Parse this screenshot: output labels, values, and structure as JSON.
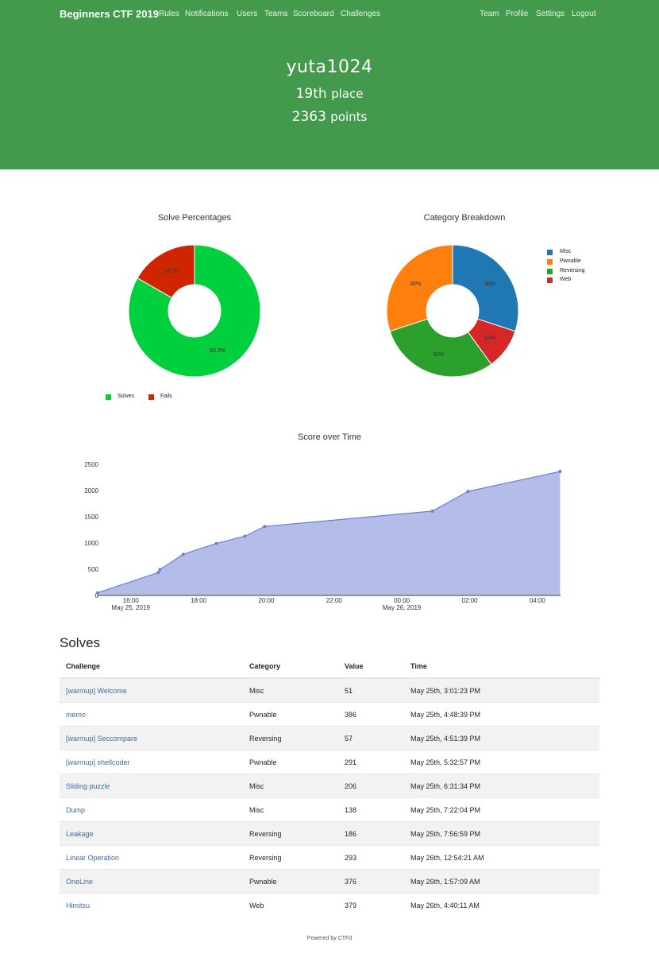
{
  "nav": {
    "brand": "Beginners CTF 2019",
    "left_links": [
      "Rules",
      "Notifications",
      "Users",
      "Teams",
      "Scoreboard",
      "Challenges"
    ],
    "right_links": [
      "Team",
      "Profile",
      "Settings",
      "Logout"
    ]
  },
  "hero": {
    "name": "yuta1024",
    "place_rank": "19th",
    "place_word": "place",
    "points_value": "2363",
    "points_word": "points"
  },
  "colors": {
    "header_bg": "#449a4c",
    "solves": "#00d03e",
    "fails": "#cf2600",
    "misc": "#1f77b4",
    "pwnable": "#ff7f0e",
    "reversing": "#2ca02c",
    "web": "#d62728",
    "area_fill": "#b3bde8",
    "area_line": "#6c7fd0",
    "link": "#3a6db8"
  },
  "chart_data": [
    {
      "type": "pie",
      "title": "Solve Percentages",
      "labels": [
        "Solves",
        "Fails"
      ],
      "values": [
        83.3,
        16.7
      ],
      "value_labels": [
        "83.3%",
        "16.7%"
      ],
      "hole": true,
      "legend_position": "bottom"
    },
    {
      "type": "pie",
      "title": "Category Breakdown",
      "labels": [
        "Misc",
        "Pwnable",
        "Reversing",
        "Web"
      ],
      "values": [
        30,
        30,
        30,
        10
      ],
      "value_labels": [
        "30%",
        "30%",
        "30%",
        "10%"
      ],
      "hole": true,
      "legend_position": "right"
    },
    {
      "type": "area",
      "title": "Score over Time",
      "x": [
        "2019-05-25 15:01:23",
        "2019-05-25 16:48:39",
        "2019-05-25 16:51:39",
        "2019-05-25 17:32:57",
        "2019-05-25 18:31:34",
        "2019-05-25 19:22:04",
        "2019-05-25 19:56:59",
        "2019-05-26 00:54:21",
        "2019-05-26 01:57:09",
        "2019-05-26 04:40:11"
      ],
      "y": [
        51,
        437,
        494,
        785,
        991,
        1129,
        1315,
        1608,
        1984,
        2363
      ],
      "xticks": [
        "16:00",
        "18:00",
        "20:00",
        "22:00",
        "00:00",
        "02:00",
        "04:00"
      ],
      "xtick_dates": [
        "May 25, 2019",
        "May 26, 2019"
      ],
      "yticks": [
        "0",
        "500",
        "1000",
        "1500",
        "2000",
        "2500"
      ],
      "ylim": [
        0,
        2500
      ]
    }
  ],
  "solves": {
    "title": "Solves",
    "columns": [
      "Challenge",
      "Category",
      "Value",
      "Time"
    ],
    "rows": [
      {
        "challenge": "[warmup] Welcome",
        "category": "Misc",
        "value": "51",
        "time": "May 25th, 3:01:23 PM"
      },
      {
        "challenge": "memo",
        "category": "Pwnable",
        "value": "386",
        "time": "May 25th, 4:48:39 PM"
      },
      {
        "challenge": "[warmup] Seccompare",
        "category": "Reversing",
        "value": "57",
        "time": "May 25th, 4:51:39 PM"
      },
      {
        "challenge": "[warmup] shellcoder",
        "category": "Pwnable",
        "value": "291",
        "time": "May 25th, 5:32:57 PM"
      },
      {
        "challenge": "Sliding puzzle",
        "category": "Misc",
        "value": "206",
        "time": "May 25th, 6:31:34 PM"
      },
      {
        "challenge": "Dump",
        "category": "Misc",
        "value": "138",
        "time": "May 25th, 7:22:04 PM"
      },
      {
        "challenge": "Leakage",
        "category": "Reversing",
        "value": "186",
        "time": "May 25th, 7:56:59 PM"
      },
      {
        "challenge": "Linear Operation",
        "category": "Reversing",
        "value": "293",
        "time": "May 26th, 12:54:21 AM"
      },
      {
        "challenge": "OneLine",
        "category": "Pwnable",
        "value": "376",
        "time": "May 26th, 1:57:09 AM"
      },
      {
        "challenge": "Himitsu",
        "category": "Web",
        "value": "379",
        "time": "May 26th, 4:40:11 AM"
      }
    ]
  },
  "footer": "Powered by CTFd"
}
